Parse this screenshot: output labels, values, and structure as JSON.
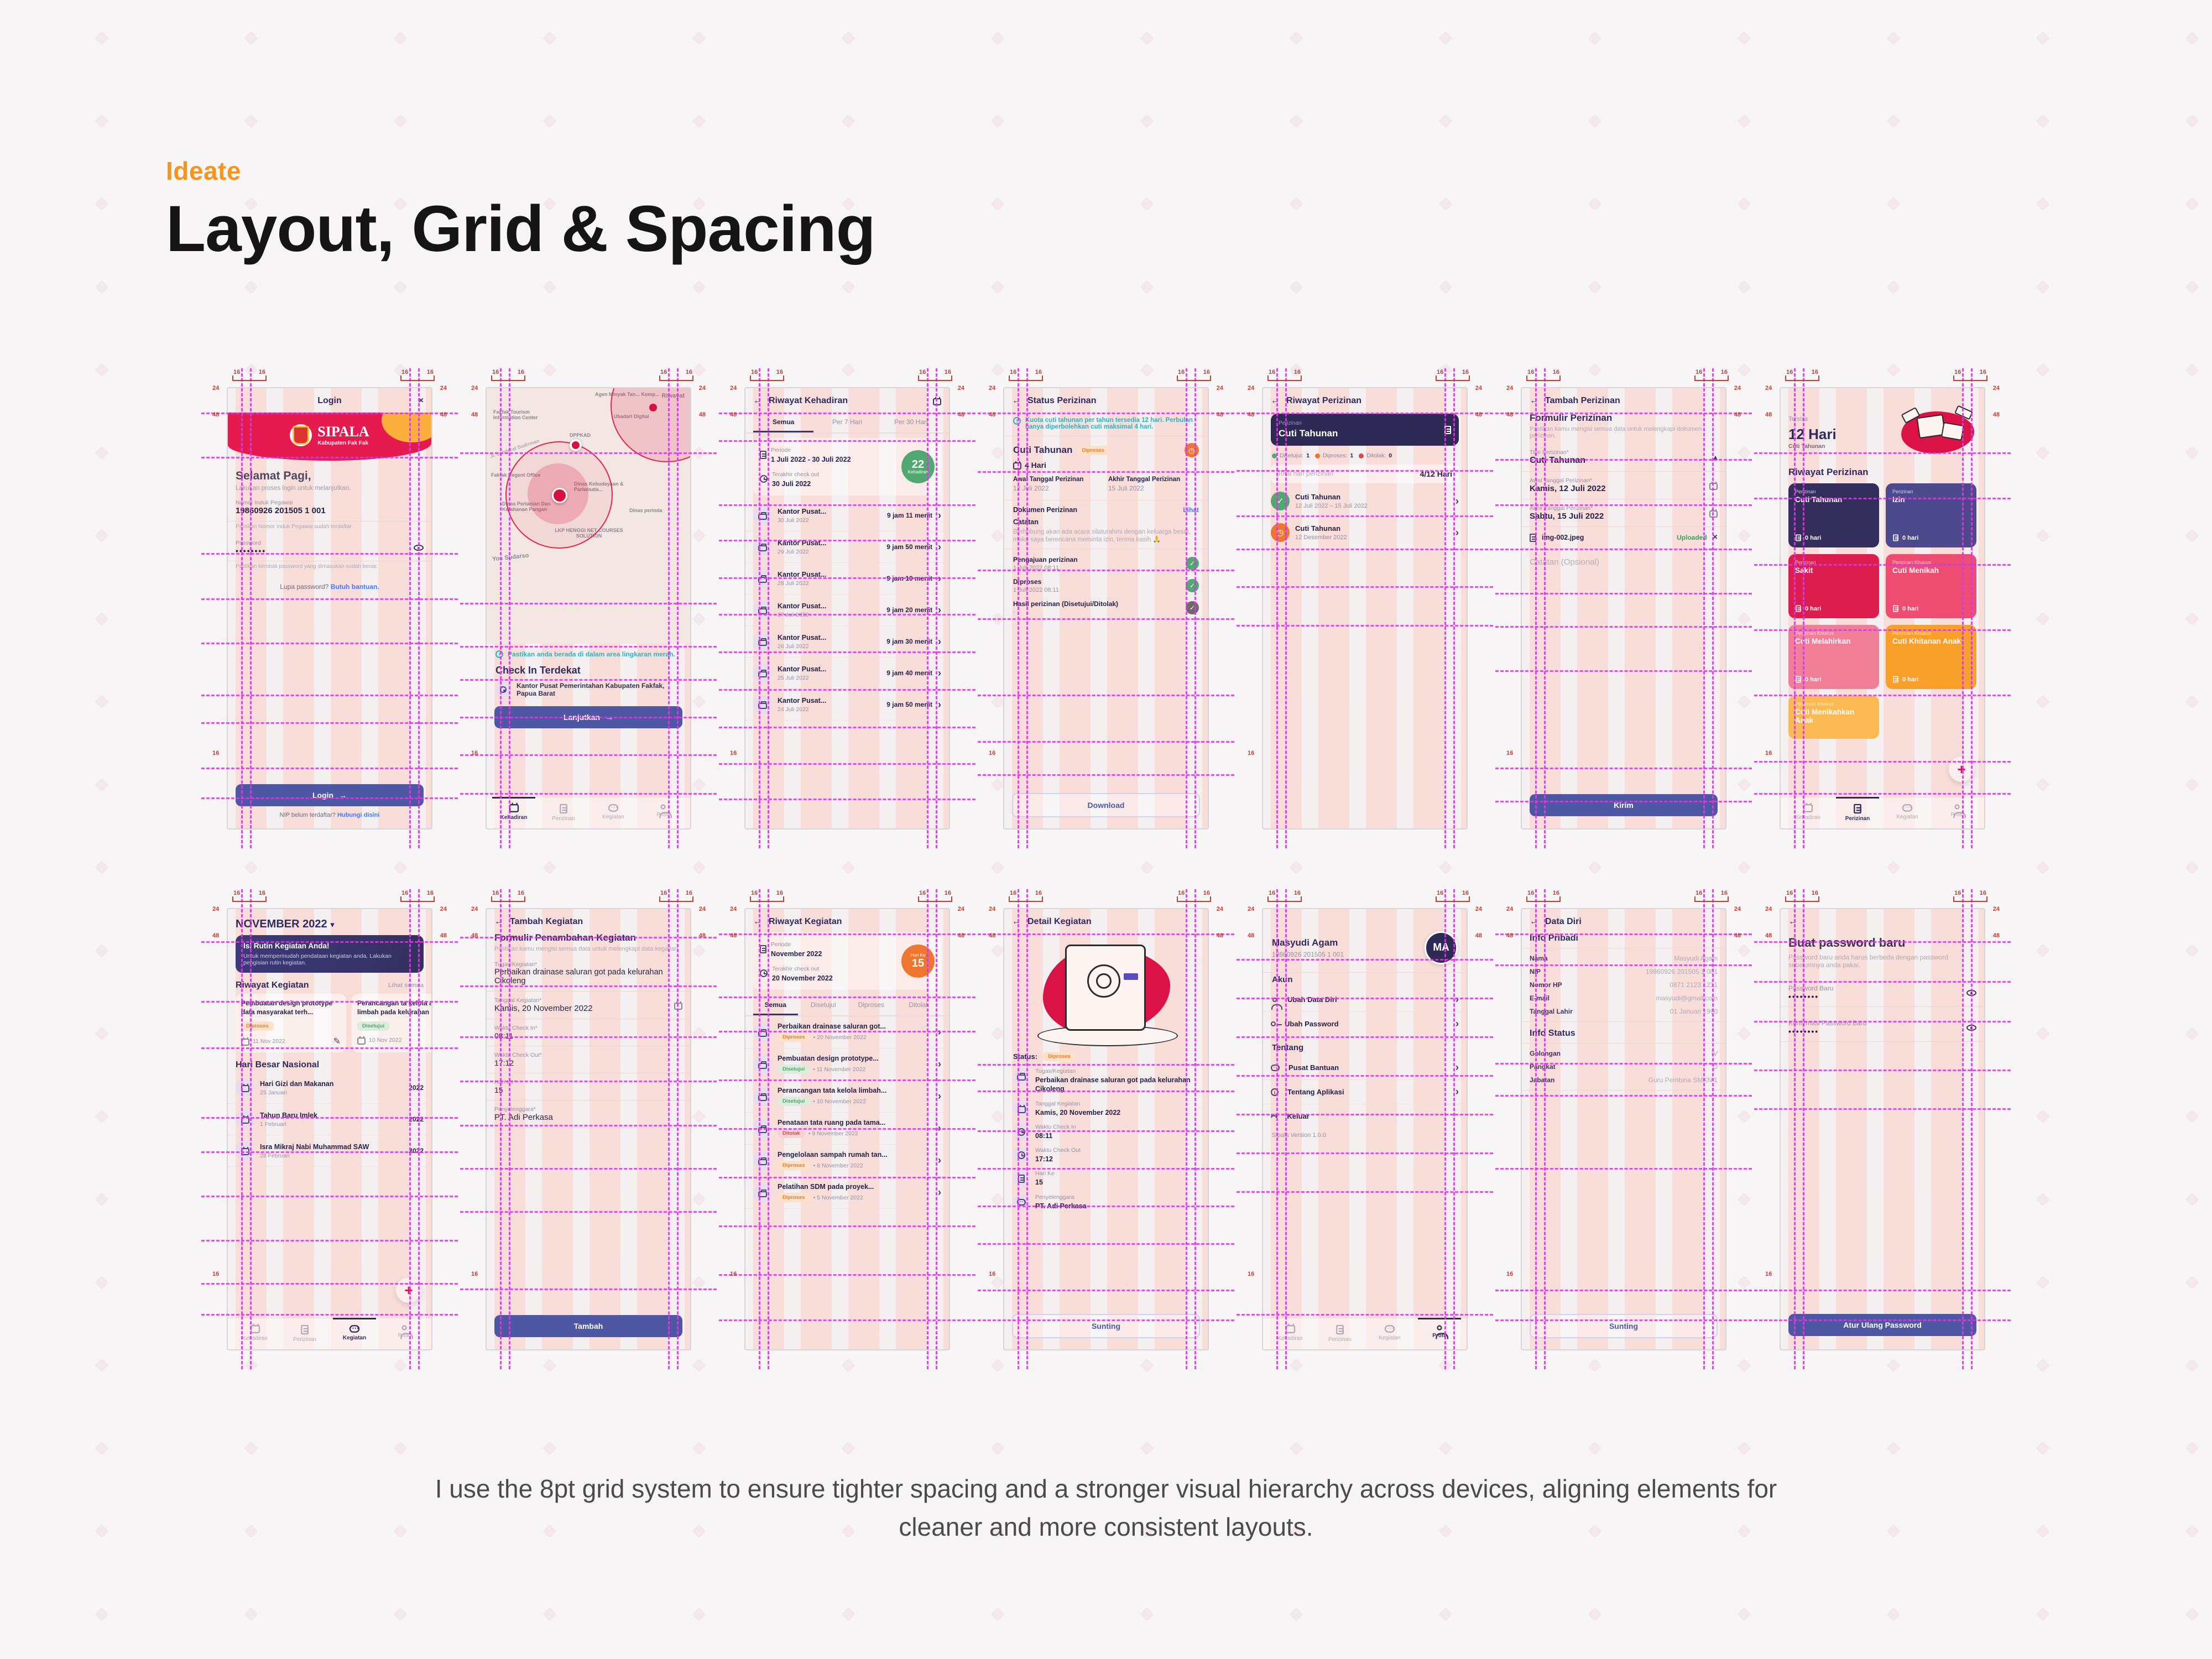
{
  "page": {
    "kicker": "Ideate",
    "title": "Layout, Grid & Spacing",
    "caption": "I use the 8pt grid system to ensure tighter spacing and a stronger visual hierarchy across devices, aligning elements for cleaner and more consistent layouts.",
    "measurements": {
      "m16": "16",
      "m24": "24",
      "m48": "48"
    }
  },
  "icons": {
    "back": "←",
    "close": "×",
    "arrow_right": "→",
    "chevron_right": "›",
    "chevron_down": "▾",
    "chevron_up": "▴",
    "plus": "+",
    "check": "✓",
    "pencil": "✎",
    "logout": "↦",
    "dot": "•",
    "clockface": "◷"
  },
  "nav": {
    "items": [
      {
        "label": "Kehadiran"
      },
      {
        "label": "Perizinan"
      },
      {
        "label": "Kegiatan"
      },
      {
        "label": "Profil"
      }
    ]
  },
  "login": {
    "appbar": "Login",
    "brand": "SIPALA",
    "brand_sub": "Kabupaten Fak Fak",
    "greeting": "Selamat Pagi,",
    "greeting_sub": "Lakukan proses login untuk melanjutkan.",
    "nip_label": "Nomor Induk Pegawai",
    "nip_value": "19860926 201505 1 001",
    "nip_help": "Pastikan Nomor Induk Pegawai sudah terdaftar.",
    "password_label": "Password",
    "password_value": "••••••••",
    "password_help": "Pastikan kembali password yang dimasukan sudah benar.",
    "forgot": "Lupa password?",
    "forgot_link": "Butuh bantuan.",
    "login_btn": "Login",
    "register": "NIP belum terdaftar?",
    "register_link": "Hubungi disini"
  },
  "checkin": {
    "riwayat_link": "Riwayat",
    "labels": {
      "agen": "Agen Minyak Tan... Komp...",
      "ubadari": "Ubadari Digital",
      "tourism": "Fakfak Tourism Information Center",
      "dppkad": "DPPKAD",
      "sudirman": "Jl. Jenderal Sudirman",
      "regent": "Fakfak Regent Office",
      "kebudayaan": "Dinas Kebudayaan & Pariwisata...",
      "pertanian": "Dinas Pertanian Dan Ketahanan Pangan",
      "perinda": "Dinas perinda",
      "lkp": "LKP HENGGI NET COURSES SOLUTION",
      "yos": "Yos Sudarso"
    },
    "notice": "Pastikan anda berada di dalam area lingkaran merah.",
    "heading": "Check In Terdekat",
    "location": "Kantor Pusat Pemerintahan Kabupaten Fakfak, Papua Barat",
    "continue_btn": "Lanjutkan"
  },
  "kehadiran": {
    "appbar": "Riwayat Kehadiran",
    "tabs": [
      {
        "label": "Semua"
      },
      {
        "label": "Per 7 Hari"
      },
      {
        "label": "Per 30 Hari"
      }
    ],
    "periode_label": "Periode",
    "periode": "1 Juli 2022 - 30 Juli 2022",
    "checkout_label": "Terakhir check out",
    "checkout": "30 Juli 2022",
    "count": "22",
    "count_label": "Kehadiran",
    "items": [
      {
        "title": "Kantor Pusat...",
        "date": "30 Juli 2022",
        "duration": "9 jam 11 menit"
      },
      {
        "title": "Kantor Pusat...",
        "date": "29 Juli 2022",
        "duration": "9 jam 50 menit"
      },
      {
        "title": "Kantor Pusat...",
        "date": "28 Juli 2022",
        "duration": "9 jam 10 menit"
      },
      {
        "title": "Kantor Pusat...",
        "date": "27 Juli 2022",
        "duration": "9 jam 20 menit"
      },
      {
        "title": "Kantor Pusat...",
        "date": "26 Juli 2022",
        "duration": "9 jam 30 menit"
      },
      {
        "title": "Kantor Pusat...",
        "date": "25 Juli 2022",
        "duration": "9 jam 40 menit"
      },
      {
        "title": "Kantor Pusat...",
        "date": "24 Juli 2022",
        "duration": "9 jam 50 menit"
      }
    ]
  },
  "status": {
    "appbar": "Status Perizinan",
    "notice": "Kuota cuti tahunan per tahun tersedia 12 hari. Perbulan hanya diperbolehkan cuti maksimal 4 hari.",
    "title": "Cuti Tahunan",
    "badge": "Diproses",
    "days": "4 Hari",
    "start_label": "Awal Tanggal Perizinan",
    "start": "12 Juli 2022",
    "end_label": "Akhir Tanggal Perizinan",
    "end": "15 Juli 2022",
    "doc_label": "Dokumen Perizinan",
    "doc_link": "Lihat",
    "note_label": "Catatan",
    "note": "Berhubung akan ada acara silaturahmi dengan keluarga besar, maka saya berencana meminta izin, terima kasih 🙏",
    "timeline": [
      {
        "label": "Pengajuan perizinan",
        "time": "1 Juli 2022 08:11"
      },
      {
        "label": "Diproses",
        "time": "1 Juli 2022 08:11"
      },
      {
        "label": "Hasil perizinan (Disetujui/Ditolak)",
        "time": "-"
      }
    ],
    "download_btn": "Download"
  },
  "riwayat_perizinan": {
    "appbar": "Riwayat Perizinan",
    "card_label": "Perizinan",
    "card_title": "Cuti Tahunan",
    "legend": [
      {
        "label": "Disetujui:",
        "value": "1",
        "color": "#4caa72"
      },
      {
        "label": "Diproses:",
        "value": "1",
        "color": "#f0762f"
      },
      {
        "label": "Ditolak:",
        "value": "0",
        "color": "#d84848"
      }
    ],
    "total_label": "Total hari perizinan",
    "total": "4/12 Hari",
    "items": [
      {
        "title": "Cuti Tahunan",
        "date": "12 Juli 2022 – 15 Juli 2022"
      },
      {
        "title": "Cuti Tahunan",
        "date": "12 Desember 2022"
      }
    ]
  },
  "tambah_perizinan": {
    "appbar": "Tambah Perizinan",
    "form_title": "Formulir Perizinan",
    "form_sub": "Pastikan kamu mengisi semua data untuk melengkapi dokumen perizinan.",
    "tipe_label": "Tipe Perizinan*",
    "tipe": "Cuti Tahunan",
    "awal_label": "Awal Tanggal Perizinan*",
    "awal": "Kamis, 12 Juli 2022",
    "akhir_label": "Akhir Tanggal Perizinan*",
    "akhir": "Sabtu, 15 Juli 2022",
    "file": "img-002.jpeg",
    "file_status": "Uploaded",
    "catatan_placeholder": "Catatan (Opsional)",
    "submit_btn": "Kirim"
  },
  "perizinan_home": {
    "tersisa_label": "Tersisa",
    "days": "12 Hari",
    "days_sub": "Cuti Tahunan",
    "heading": "Riwayat Perizinan",
    "cards": [
      {
        "label": "Perizinan",
        "title": "Cuti Tahunan",
        "days": "0 hari",
        "color": "#332e5c"
      },
      {
        "label": "Perizinan",
        "title": "Izin",
        "days": "0 hari",
        "color": "#4c4a8c"
      },
      {
        "label": "Perizinan",
        "title": "Sakit",
        "days": "0 hari",
        "color": "#dd1d4e"
      },
      {
        "label": "Perizinan Khusus",
        "title": "Cuti Menikah",
        "days": "0 hari",
        "color": "#ef4c72"
      },
      {
        "label": "Perizinan Khusus",
        "title": "Cuti Melahirkan",
        "days": "0 hari",
        "color": "#f07e96"
      },
      {
        "label": "Perizinan Khusus",
        "title": "Cuti Khitanan Anak",
        "days": "0 hari",
        "color": "#f9a02b"
      },
      {
        "label": "Perizinan Khusus",
        "title": "Cuti Menikahkan Anak",
        "days": "",
        "color": "#fbb954"
      }
    ]
  },
  "kegiatan_home": {
    "month": "NOVEMBER 2022",
    "banner_title": "Isi Rutin Kegiatan Anda!",
    "banner_sub": "Untuk mempermudah pendataan kegiatan anda. Lakukan pengisian rutin kegiatan.",
    "heading": "Riwayat Kegiatan",
    "see_all": "Lihat semua",
    "cards": [
      {
        "title": "Pembuatan design prototype data masyarakat terh...",
        "badge": "Diproses",
        "date": "11 Nov 2022"
      },
      {
        "title": "Perancangan ta kelola air limbah pada kelurahan",
        "badge": "Disetujui",
        "date": "10 Nov 2022"
      }
    ],
    "holidays_heading": "Hari Besar Nasional",
    "holidays": [
      {
        "title": "Hari Gizi dan Makanan",
        "date": "25 Januari",
        "year": "2022"
      },
      {
        "title": "Tahun Baru Imlek",
        "date": "1 Februari",
        "year": "2022"
      },
      {
        "title": "Isra Mikraj Nabi Muhammad SAW",
        "date": "28 Februari",
        "year": "2022"
      }
    ]
  },
  "tambah_kegiatan": {
    "appbar": "Tambah Kegiatan",
    "form_title": "Formulir Penambahan Kegiatan",
    "form_sub": "Pastikan kamu mengisi semua data untuk melengkapi data kegaitan.",
    "fields": [
      {
        "label": "Tugas/Kegiatan*",
        "value": "Perbaikan drainase saluran got pada kelurahan Cikoleng"
      },
      {
        "label": "Tanggal Kegiatan*",
        "value": "Kamis, 20 November 2022"
      },
      {
        "label": "Waktu Check In*",
        "value": "08:11"
      },
      {
        "label": "Waktu Check Out*",
        "value": "17:12"
      },
      {
        "label": "Hari Ke*",
        "value": "15"
      },
      {
        "label": "Penyelenggara*",
        "value": "PT. Adi Perkasa"
      }
    ],
    "submit_btn": "Tambah"
  },
  "riwayat_kegiatan": {
    "appbar": "Riwayat Kegiatan",
    "periode_label": "Periode",
    "periode": "November 2022",
    "checkout_label": "Terakhir check out",
    "checkout": "20 November 2022",
    "hari_label": "Hari Ke",
    "hari": "15",
    "tabs": [
      {
        "label": "Semua"
      },
      {
        "label": "Disetujui"
      },
      {
        "label": "Diproses"
      },
      {
        "label": "Ditolak"
      }
    ],
    "items": [
      {
        "title": "Perbaikan drainase saluran got...",
        "badge": "Diproses",
        "cls": "b-or",
        "date": "20 November 2022"
      },
      {
        "title": "Pembuatan design prototype...",
        "badge": "Disetujui",
        "cls": "b-gr",
        "date": "11 November 2022"
      },
      {
        "title": "Perancangan tata kelola limbah...",
        "badge": "Disetujui",
        "cls": "b-gr",
        "date": "10 November 2022"
      },
      {
        "title": "Penataan tata ruang pada tama...",
        "badge": "Ditolak",
        "cls": "b-rd",
        "date": "9 November 2022"
      },
      {
        "title": "Pengelolaan sampah rumah tan...",
        "badge": "Diproses",
        "cls": "b-or",
        "date": "8 November 2022"
      },
      {
        "title": "Pelatihan SDM pada proyek...",
        "badge": "Diproses",
        "cls": "b-or",
        "date": "5 November 2022"
      }
    ]
  },
  "detail_kegiatan": {
    "appbar": "Detail Kegiatan",
    "status_label": "Status:",
    "status_badge": "Diproses",
    "rows": [
      {
        "label": "Tugas/Kegiatan",
        "value": "Perbaikan drainase saluran got pada kelurahan Cikoleng"
      },
      {
        "label": "Tanggal Kegiatan",
        "value": "Kamis, 20 November 2022"
      },
      {
        "label": "Waktu Check In",
        "value": "08:11"
      },
      {
        "label": "Waktu Check Out",
        "value": "17:12"
      },
      {
        "label": "Hari Ke",
        "value": "15"
      },
      {
        "label": "Penyelenggara",
        "value": "PT. Adi Perkasa"
      }
    ],
    "edit_btn": "Sunting"
  },
  "profil": {
    "name": "Masyudi Agam",
    "nip": "19860926 201505 1 001",
    "avatar": "MA",
    "akun_heading": "Akun",
    "akun_items": [
      {
        "label": "Ubah Data Diri"
      },
      {
        "label": "Ubah Password"
      }
    ],
    "tentang_heading": "Tentang",
    "tentang_items": [
      {
        "label": "Pusat Bantuan"
      },
      {
        "label": "Tentang Aplikasi"
      },
      {
        "label": "Keluar"
      }
    ],
    "version": "Sipala Version 1.0.0"
  },
  "data_diri": {
    "appbar": "Data Diri",
    "pribadi_heading": "Info Pribadi",
    "pribadi": [
      {
        "label": "Nama",
        "value": "Masyudi Agam"
      },
      {
        "label": "NIP",
        "value": "19860926 201505 1 001"
      },
      {
        "label": "Nomor HP",
        "value": "0871 2123 1231"
      },
      {
        "label": "E-mail",
        "value": "masyudi@gmail.com"
      },
      {
        "label": "Tanggal Lahir",
        "value": "01 Januari 1990"
      }
    ],
    "status_heading": "Info Status",
    "status": [
      {
        "label": "Golongan",
        "value": "IV"
      },
      {
        "label": "Pangkat",
        "value": "D"
      },
      {
        "label": "Jabatan",
        "value": "Guru Pembina SMKN 1"
      }
    ],
    "edit_btn": "Sunting"
  },
  "reset_password": {
    "title": "Buat password baru",
    "sub": "Password baru anda harus berbeda dengan password sebelumnya anda pakai.",
    "pw_label": "Password Baru",
    "pw_value": "••••••••",
    "confirm_label": "Konfirmasi Password Baru",
    "confirm_value": "••••••••",
    "submit_btn": "Atur Ulang Password"
  }
}
